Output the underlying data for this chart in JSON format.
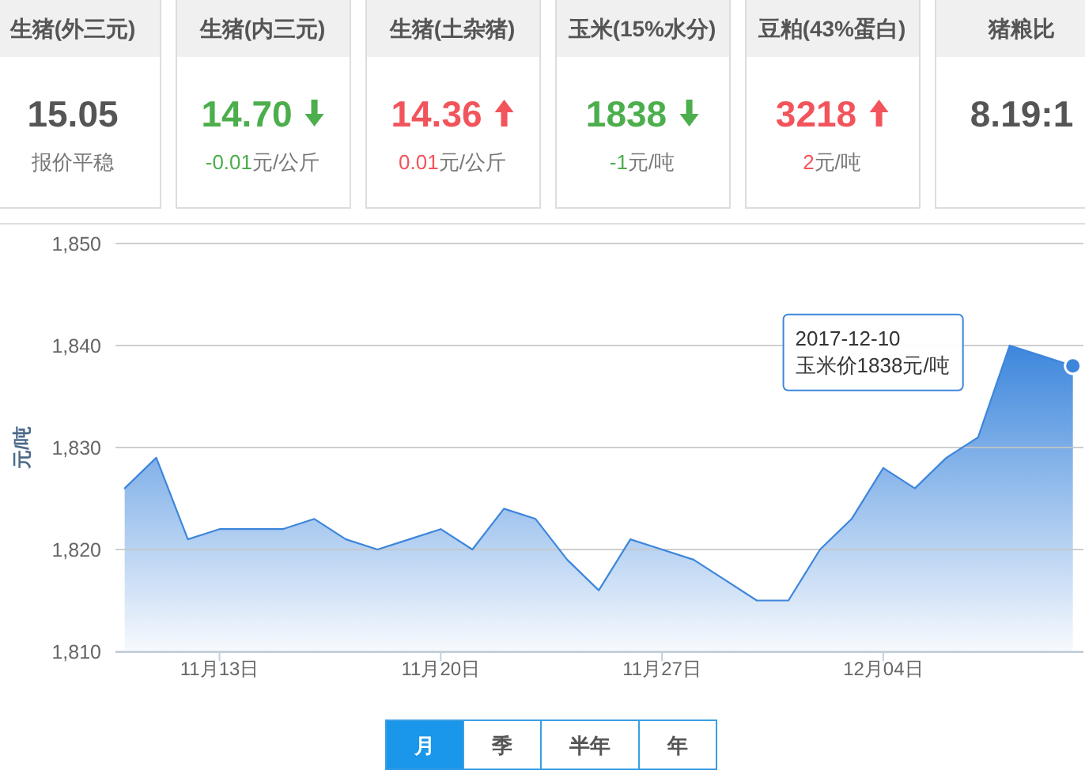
{
  "chart_data": [
    {
      "type": "other",
      "title": "生猪(外三元)",
      "subtitle": "15.05",
      "annotations": [
        "报价平稳"
      ],
      "color": "#555555"
    },
    {
      "type": "other",
      "title": "生猪(内三元)",
      "subtitle": "14.70",
      "values": [
        -0.01
      ],
      "data_labels": true,
      "annotations": [
        "元/公斤"
      ],
      "color": "#4cae4c"
    },
    {
      "type": "other",
      "title": "生猪(土杂猪)",
      "subtitle": "14.36",
      "values": [
        0.01
      ],
      "data_labels": true,
      "annotations": [
        "元/公斤"
      ],
      "color": "#f2545b"
    },
    {
      "type": "other",
      "title": "玉米(15%水分)",
      "subtitle": "1838",
      "values": [
        -1
      ],
      "data_labels": true,
      "annotations": [
        "元/吨"
      ],
      "color": "#4cae4c"
    },
    {
      "type": "other",
      "title": "豆粕(43%蛋白)",
      "subtitle": "3218",
      "values": [
        2
      ],
      "data_labels": true,
      "annotations": [
        "元/吨"
      ],
      "color": "#f2545b"
    },
    {
      "type": "other",
      "title": "猪粮比",
      "subtitle": "8.19:1",
      "color": "#555555"
    },
    {
      "type": "area",
      "x": [
        "2017-11-10",
        "2017-11-11",
        "2017-11-12",
        "2017-11-13",
        "2017-11-14",
        "2017-11-15",
        "2017-11-16",
        "2017-11-17",
        "2017-11-18",
        "2017-11-19",
        "2017-11-20",
        "2017-11-21",
        "2017-11-22",
        "2017-11-23",
        "2017-11-24",
        "2017-11-25",
        "2017-11-26",
        "2017-11-27",
        "2017-11-28",
        "2017-11-29",
        "2017-11-30",
        "2017-12-01",
        "2017-12-02",
        "2017-12-03",
        "2017-12-04",
        "2017-12-05",
        "2017-12-06",
        "2017-12-07",
        "2017-12-08",
        "2017-12-09",
        "2017-12-10"
      ],
      "values": [
        1826,
        1829,
        1821,
        1822,
        1822,
        1822,
        1823,
        1821,
        1820,
        1821,
        1822,
        1820,
        1824,
        1823,
        1819,
        1816,
        1821,
        1820,
        1819,
        1817,
        1815,
        1815,
        1820,
        1823,
        1828,
        1826,
        1829,
        1831,
        1840,
        1839,
        1838
      ],
      "color": "#3d86dc",
      "ylabel": "元/吨",
      "xlim": [
        "2017-11-09T17:00",
        "2017-12-10T08:00"
      ],
      "xticks": [
        {
          "value": "2017-11-13",
          "label": "11月13日"
        },
        {
          "value": "2017-11-20",
          "label": "11月20日"
        },
        {
          "value": "2017-11-27",
          "label": "11月27日"
        },
        {
          "value": "2017-12-04",
          "label": "12月04日"
        }
      ],
      "ylim": [
        1810,
        1850
      ],
      "yticks": [
        {
          "value": 1810,
          "label": "1,810"
        },
        {
          "value": 1820,
          "label": "1,820"
        },
        {
          "value": 1830,
          "label": "1,830"
        },
        {
          "value": 1840,
          "label": "1,840"
        },
        {
          "value": 1850,
          "label": "1,850"
        }
      ],
      "grid": "y",
      "annotations": [
        "2017-12-10",
        "玉米价1838元/吨"
      ]
    },
    {
      "type": "other",
      "categories": [
        "月",
        "季",
        "半年",
        "年"
      ],
      "colors": [
        "#1a96ea",
        null,
        null,
        null
      ],
      "color": "#3a9ee4"
    }
  ]
}
